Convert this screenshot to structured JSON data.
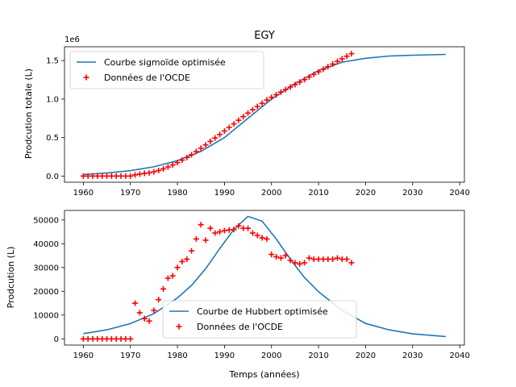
{
  "colors": {
    "line": "#1f77b4",
    "marker": "#ff0000",
    "axes": "#000000",
    "legend_border": "#cccccc"
  },
  "chart_data": [
    {
      "type": "line",
      "title": "EGY",
      "ylabel": "Prodcution totale (L)",
      "xlabel": "",
      "offset_text": "1e6",
      "xlim": [
        1956,
        2041
      ],
      "ylim": [
        -0.08,
        1.68
      ],
      "x_ticks": [
        1960,
        1970,
        1980,
        1990,
        2000,
        2010,
        2020,
        2030,
        2040
      ],
      "x_tick_labels": [
        "1960",
        "1970",
        "1980",
        "1990",
        "2000",
        "2010",
        "2020",
        "2030",
        "2040"
      ],
      "y_ticks": [
        0,
        0.5,
        1.0,
        1.5
      ],
      "y_tick_labels": [
        "0.0",
        "0.5",
        "1.0",
        "1.5"
      ],
      "grid": false,
      "legend_position": "upper-left",
      "series": [
        {
          "name": "Courbe sigmoïde optimisée",
          "kind": "line",
          "x": [
            1960,
            1965,
            1970,
            1975,
            1980,
            1985,
            1990,
            1995,
            2000,
            2005,
            2010,
            2015,
            2020,
            2025,
            2030,
            2037
          ],
          "y": [
            0.02,
            0.04,
            0.07,
            0.12,
            0.2,
            0.32,
            0.5,
            0.75,
            1.0,
            1.2,
            1.37,
            1.48,
            1.53,
            1.56,
            1.57,
            1.58
          ]
        },
        {
          "name": "Données de l'OCDE",
          "kind": "scatter",
          "x": [
            1960,
            1961,
            1962,
            1963,
            1964,
            1965,
            1966,
            1967,
            1968,
            1969,
            1970,
            1971,
            1972,
            1973,
            1974,
            1975,
            1976,
            1977,
            1978,
            1979,
            1980,
            1981,
            1982,
            1983,
            1984,
            1985,
            1986,
            1987,
            1988,
            1989,
            1990,
            1991,
            1992,
            1993,
            1994,
            1995,
            1996,
            1997,
            1998,
            1999,
            2000,
            2001,
            2002,
            2003,
            2004,
            2005,
            2006,
            2007,
            2008,
            2009,
            2010,
            2011,
            2012,
            2013,
            2014,
            2015,
            2016,
            2017
          ],
          "y": [
            0.0,
            0.0,
            0.0,
            0.0,
            0.0,
            0.0,
            0.0,
            0.0,
            0.0,
            0.0,
            0.0,
            0.015,
            0.026,
            0.035,
            0.042,
            0.055,
            0.072,
            0.093,
            0.118,
            0.145,
            0.175,
            0.207,
            0.24,
            0.277,
            0.319,
            0.361,
            0.405,
            0.451,
            0.495,
            0.54,
            0.585,
            0.631,
            0.678,
            0.725,
            0.772,
            0.818,
            0.862,
            0.904,
            0.946,
            0.988,
            1.023,
            1.057,
            1.092,
            1.124,
            1.157,
            1.189,
            1.221,
            1.253,
            1.287,
            1.321,
            1.354,
            1.388,
            1.421,
            1.455,
            1.489,
            1.523,
            1.557,
            1.59
          ]
        }
      ]
    },
    {
      "type": "line",
      "title": "",
      "ylabel": "Prodcution (L)",
      "xlabel": "Temps (années)",
      "xlim": [
        1956,
        2041
      ],
      "ylim": [
        -2600,
        54000
      ],
      "x_ticks": [
        1960,
        1970,
        1980,
        1990,
        2000,
        2010,
        2020,
        2030,
        2040
      ],
      "x_tick_labels": [
        "1960",
        "1970",
        "1980",
        "1990",
        "2000",
        "2010",
        "2020",
        "2030",
        "2040"
      ],
      "y_ticks": [
        0,
        10000,
        20000,
        30000,
        40000,
        50000
      ],
      "y_tick_labels": [
        "0",
        "10000",
        "20000",
        "30000",
        "40000",
        "50000"
      ],
      "grid": false,
      "legend_position": "lower-center",
      "series": [
        {
          "name": "Courbe de Hubbert optimisée",
          "kind": "line",
          "x": [
            1960,
            1965,
            1970,
            1975,
            1980,
            1983,
            1986,
            1989,
            1992,
            1995,
            1998,
            2001,
            2004,
            2007,
            2010,
            2015,
            2020,
            2025,
            2030,
            2037
          ],
          "y": [
            2200,
            3800,
            6400,
            10600,
            17200,
            22500,
            29500,
            38000,
            46000,
            51500,
            49500,
            42000,
            33500,
            25800,
            19800,
            12000,
            6500,
            3800,
            2100,
            1000
          ]
        },
        {
          "name": "Données de l'OCDE",
          "kind": "scatter",
          "x": [
            1960,
            1961,
            1962,
            1963,
            1964,
            1965,
            1966,
            1967,
            1968,
            1969,
            1970,
            1971,
            1972,
            1973,
            1974,
            1975,
            1976,
            1977,
            1978,
            1979,
            1980,
            1981,
            1982,
            1983,
            1984,
            1985,
            1986,
            1987,
            1988,
            1989,
            1990,
            1991,
            1992,
            1993,
            1994,
            1995,
            1996,
            1997,
            1998,
            1999,
            2000,
            2001,
            2002,
            2003,
            2004,
            2005,
            2006,
            2007,
            2008,
            2009,
            2010,
            2011,
            2012,
            2013,
            2014,
            2015,
            2016,
            2017
          ],
          "y": [
            0,
            0,
            0,
            0,
            0,
            0,
            0,
            0,
            0,
            0,
            0,
            15000,
            11000,
            8500,
            7500,
            12000,
            16500,
            21000,
            25500,
            26500,
            30000,
            32500,
            33500,
            37000,
            42000,
            48000,
            41500,
            46500,
            44500,
            45000,
            45500,
            45800,
            46000,
            47500,
            46500,
            46500,
            44500,
            43500,
            42500,
            42000,
            35500,
            34500,
            34000,
            35000,
            33000,
            32000,
            31500,
            32000,
            34000,
            33500,
            33500,
            33500,
            33500,
            33500,
            34000,
            33500,
            33500,
            32000
          ]
        }
      ]
    }
  ]
}
